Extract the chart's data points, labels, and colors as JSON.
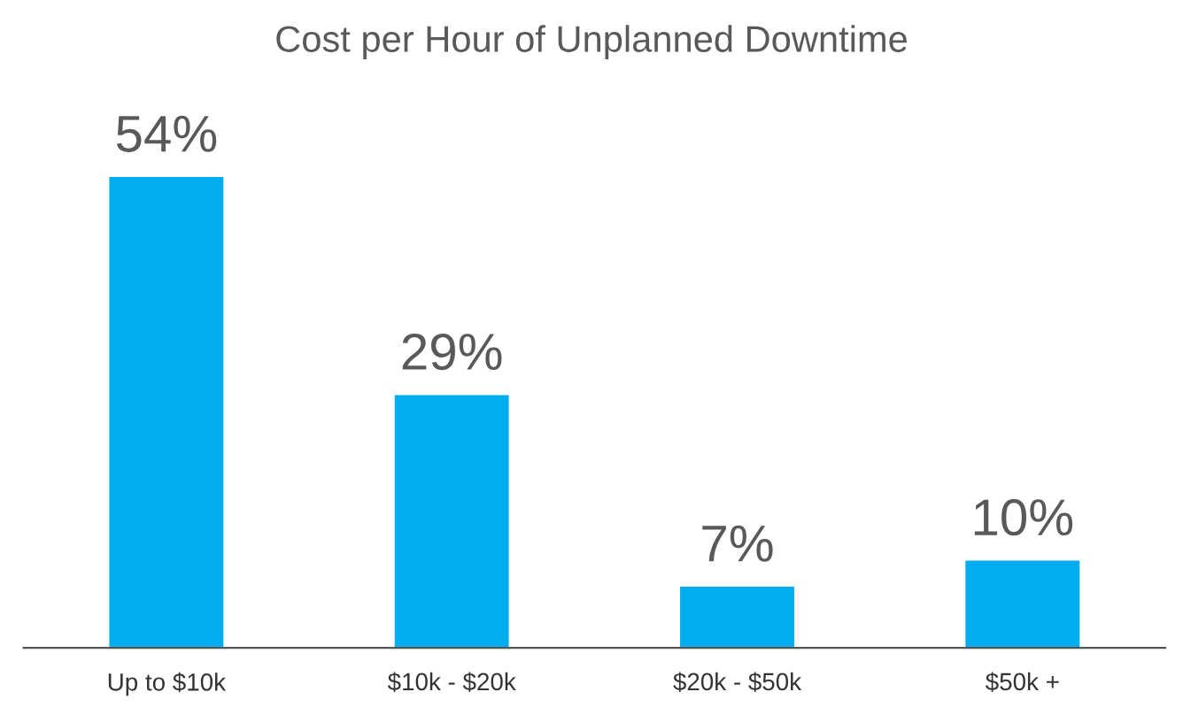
{
  "chart_data": {
    "type": "bar",
    "title": "Cost per Hour of Unplanned Downtime",
    "categories": [
      "Up to $10k",
      "$10k - $20k",
      "$20k - $50k",
      "$50k +"
    ],
    "values": [
      54,
      29,
      7,
      10
    ],
    "value_labels": [
      "54%",
      "29%",
      "7%",
      "10%"
    ],
    "color": "#00aeef",
    "grid": false,
    "legend": false
  }
}
